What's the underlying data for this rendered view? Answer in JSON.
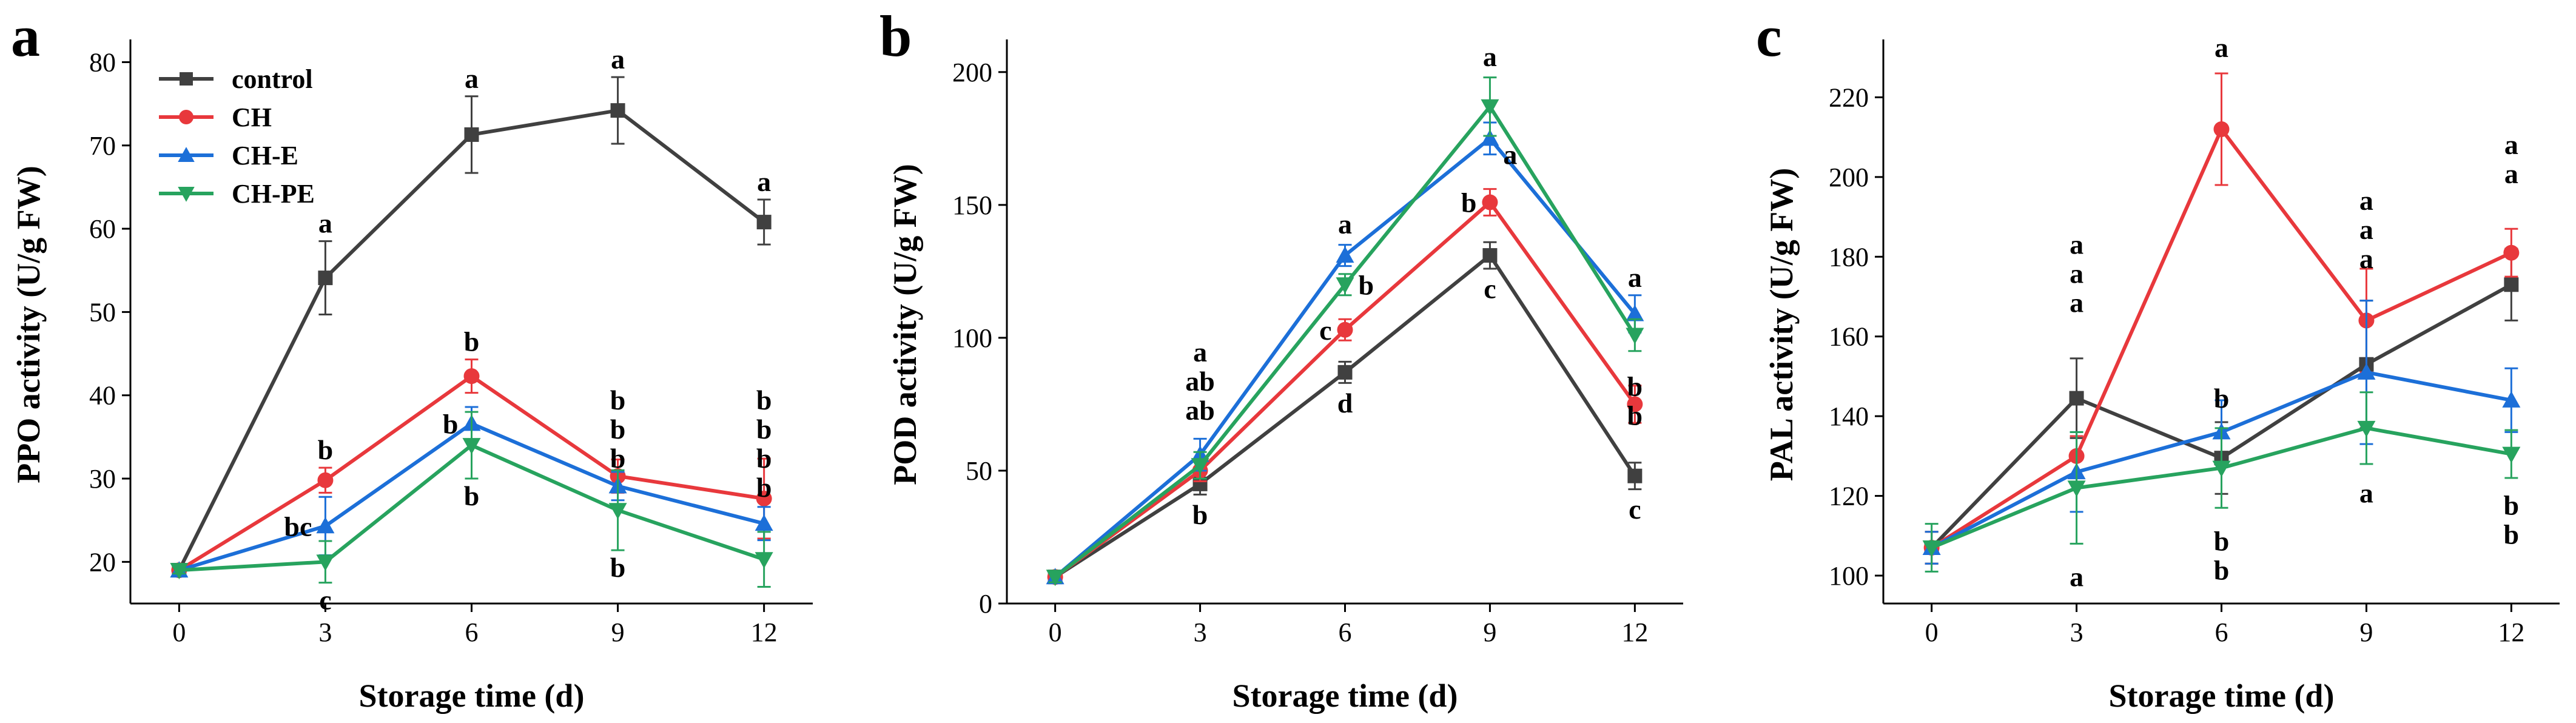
{
  "chart_data": [
    {
      "type": "line",
      "panel_label": "a",
      "xlabel": "Storage time (d)",
      "ylabel": "PPO activity (U/g FW)",
      "x": [
        0,
        3,
        6,
        9,
        12
      ],
      "xlim": [
        -1,
        13
      ],
      "ylim": [
        15,
        82
      ],
      "yticks": [
        20,
        30,
        40,
        50,
        60,
        70,
        80
      ],
      "legend": {
        "position": "top-left"
      },
      "series": [
        {
          "name": "control",
          "color": "#404040",
          "marker": "square",
          "values": [
            19.0,
            54.1,
            71.3,
            74.2,
            60.8
          ],
          "errors": [
            0.4,
            4.4,
            4.6,
            4.0,
            2.7
          ]
        },
        {
          "name": "CH",
          "color": "#e8383c",
          "marker": "circle",
          "values": [
            19.0,
            29.8,
            42.3,
            30.3,
            27.6
          ],
          "errors": [
            0.4,
            1.5,
            2.0,
            2.0,
            4.8
          ]
        },
        {
          "name": "CH-E",
          "color": "#1c6fd8",
          "marker": "triangle-up",
          "values": [
            19.0,
            24.3,
            36.6,
            29.1,
            24.6
          ],
          "errors": [
            0.4,
            3.5,
            2.0,
            1.7,
            2.0
          ]
        },
        {
          "name": "CH-PE",
          "color": "#27a35e",
          "marker": "triangle-down",
          "values": [
            19.0,
            20.0,
            34.0,
            26.2,
            20.3
          ],
          "errors": [
            0.4,
            2.5,
            4.0,
            4.8,
            3.3
          ]
        }
      ],
      "annotations": [
        {
          "x": 3,
          "y": 58.5,
          "text": "a",
          "side": "above"
        },
        {
          "x": 3,
          "y": 31.3,
          "text": "b",
          "side": "above"
        },
        {
          "x": 3,
          "y": 24.3,
          "text": "bc",
          "side": "left"
        },
        {
          "x": 3,
          "y": 17.5,
          "text": "c",
          "side": "below"
        },
        {
          "x": 6,
          "y": 75.9,
          "text": "a",
          "side": "above"
        },
        {
          "x": 6,
          "y": 44.3,
          "text": "b",
          "side": "above"
        },
        {
          "x": 6,
          "y": 36.6,
          "text": "b",
          "side": "left"
        },
        {
          "x": 6,
          "y": 30.0,
          "text": "b",
          "side": "below"
        },
        {
          "x": 9,
          "y": 78.2,
          "text": "a",
          "side": "above"
        },
        {
          "x": 9,
          "y": 30.3,
          "text": "b",
          "side": "stack",
          "row": 0
        },
        {
          "x": 9,
          "y": 30.3,
          "text": "b",
          "side": "stack",
          "row": 1
        },
        {
          "x": 9,
          "y": 30.3,
          "text": "b",
          "side": "stack",
          "row": 2
        },
        {
          "x": 9,
          "y": 21.4,
          "text": "b",
          "side": "below"
        },
        {
          "x": 12,
          "y": 63.5,
          "text": "a",
          "side": "above"
        },
        {
          "x": 12,
          "y": 30.3,
          "text": "b",
          "side": "stack",
          "row": 0
        },
        {
          "x": 12,
          "y": 30.3,
          "text": "b",
          "side": "stack",
          "row": 1
        },
        {
          "x": 12,
          "y": 30.3,
          "text": "b",
          "side": "stack",
          "row": 2
        },
        {
          "x": 12,
          "y": 30.3,
          "text": "b",
          "side": "stack",
          "row": 3
        }
      ]
    },
    {
      "type": "line",
      "panel_label": "b",
      "xlabel": "Storage time (d)",
      "ylabel": "POD activity (U/g FW)",
      "x": [
        0,
        3,
        6,
        9,
        12
      ],
      "xlim": [
        -1,
        13
      ],
      "ylim": [
        0,
        210
      ],
      "yticks": [
        0,
        50,
        100,
        150,
        200
      ],
      "series": [
        {
          "name": "control",
          "color": "#404040",
          "marker": "square",
          "values": [
            10,
            45,
            87,
            131,
            48
          ],
          "errors": [
            2,
            4,
            4,
            5,
            5
          ]
        },
        {
          "name": "CH",
          "color": "#e8383c",
          "marker": "circle",
          "values": [
            10,
            50,
            103,
            151,
            75
          ],
          "errors": [
            2,
            4,
            4,
            5,
            7
          ]
        },
        {
          "name": "CH-E",
          "color": "#1c6fd8",
          "marker": "triangle-up",
          "values": [
            10,
            56,
            131,
            175,
            109
          ],
          "errors": [
            2,
            6,
            4,
            6,
            7
          ]
        },
        {
          "name": "CH-PE",
          "color": "#27a35e",
          "marker": "triangle-down",
          "values": [
            10,
            52,
            120,
            187,
            101
          ],
          "errors": [
            2,
            5,
            4,
            11,
            6
          ]
        }
      ],
      "annotations": [
        {
          "x": 3,
          "y": 66,
          "text": "a",
          "side": "stack",
          "row": 0
        },
        {
          "x": 3,
          "y": 66,
          "text": "ab",
          "side": "stack",
          "row": 1
        },
        {
          "x": 3,
          "y": 66,
          "text": "ab",
          "side": "stack",
          "row": 2
        },
        {
          "x": 3,
          "y": 40,
          "text": "b",
          "side": "below"
        },
        {
          "x": 6,
          "y": 136,
          "text": "a",
          "side": "above"
        },
        {
          "x": 6,
          "y": 120,
          "text": "b",
          "side": "right"
        },
        {
          "x": 6,
          "y": 103,
          "text": "c",
          "side": "left"
        },
        {
          "x": 6,
          "y": 82,
          "text": "d",
          "side": "below"
        },
        {
          "x": 9,
          "y": 199,
          "text": "a",
          "side": "above"
        },
        {
          "x": 9,
          "y": 169,
          "text": "a",
          "side": "right"
        },
        {
          "x": 9,
          "y": 151,
          "text": "b",
          "side": "left"
        },
        {
          "x": 9,
          "y": 125,
          "text": "c",
          "side": "below"
        },
        {
          "x": 12,
          "y": 116,
          "text": "a",
          "side": "above"
        },
        {
          "x": 12,
          "y": 75,
          "text": "b",
          "side": "stack",
          "row": 2
        },
        {
          "x": 12,
          "y": 75,
          "text": "b",
          "side": "stack",
          "row": 3
        },
        {
          "x": 12,
          "y": 42,
          "text": "c",
          "side": "below"
        }
      ]
    },
    {
      "type": "line",
      "panel_label": "c",
      "xlabel": "Storage time (d)",
      "ylabel": "PAL activity (U/g FW)",
      "x": [
        0,
        3,
        6,
        9,
        12
      ],
      "xlim": [
        -1,
        13
      ],
      "ylim": [
        93,
        233
      ],
      "yticks": [
        100,
        120,
        140,
        160,
        180,
        200,
        220
      ],
      "series": [
        {
          "name": "control",
          "color": "#404040",
          "marker": "square",
          "values": [
            107,
            144.5,
            129.5,
            153,
            173
          ],
          "errors": [
            4,
            10,
            9,
            16,
            9
          ]
        },
        {
          "name": "CH",
          "color": "#e8383c",
          "marker": "circle",
          "values": [
            107,
            130,
            212,
            164,
            181
          ],
          "errors": [
            4,
            5,
            14,
            13,
            6
          ]
        },
        {
          "name": "CH-E",
          "color": "#1c6fd8",
          "marker": "triangle-up",
          "values": [
            107,
            126,
            136,
            151,
            144
          ],
          "errors": [
            4,
            10,
            8,
            18,
            8
          ]
        },
        {
          "name": "CH-PE",
          "color": "#27a35e",
          "marker": "triangle-down",
          "values": [
            107,
            122,
            127,
            137,
            130.5
          ],
          "errors": [
            6,
            14,
            10,
            9,
            6
          ]
        }
      ],
      "annotations": [
        {
          "x": 3,
          "y": 164,
          "text": "a",
          "side": "stack",
          "row": 0
        },
        {
          "x": 3,
          "y": 164,
          "text": "a",
          "side": "stack",
          "row": 1
        },
        {
          "x": 3,
          "y": 164,
          "text": "a",
          "side": "stack",
          "row": 2
        },
        {
          "x": 3,
          "y": 104,
          "text": "a",
          "side": "below"
        },
        {
          "x": 6,
          "y": 228,
          "text": "a",
          "side": "above"
        },
        {
          "x": 6,
          "y": 140,
          "text": "b",
          "side": "above"
        },
        {
          "x": 6,
          "y": 113,
          "text": "b",
          "side": "below"
        },
        {
          "x": 6,
          "y": 113,
          "text": "b",
          "side": "below",
          "row": 1
        },
        {
          "x": 9,
          "y": 175,
          "text": "a",
          "side": "stack",
          "row": 0
        },
        {
          "x": 9,
          "y": 175,
          "text": "a",
          "side": "stack",
          "row": 1
        },
        {
          "x": 9,
          "y": 175,
          "text": "a",
          "side": "stack",
          "row": 2
        },
        {
          "x": 9,
          "y": 125,
          "text": "a",
          "side": "below"
        },
        {
          "x": 12,
          "y": 189,
          "text": "a",
          "side": "stack",
          "row": 0
        },
        {
          "x": 12,
          "y": 189,
          "text": "a",
          "side": "stack",
          "row": 1
        },
        {
          "x": 12,
          "y": 122,
          "text": "b",
          "side": "below"
        },
        {
          "x": 12,
          "y": 122,
          "text": "b",
          "side": "below",
          "row": 1
        }
      ]
    }
  ]
}
